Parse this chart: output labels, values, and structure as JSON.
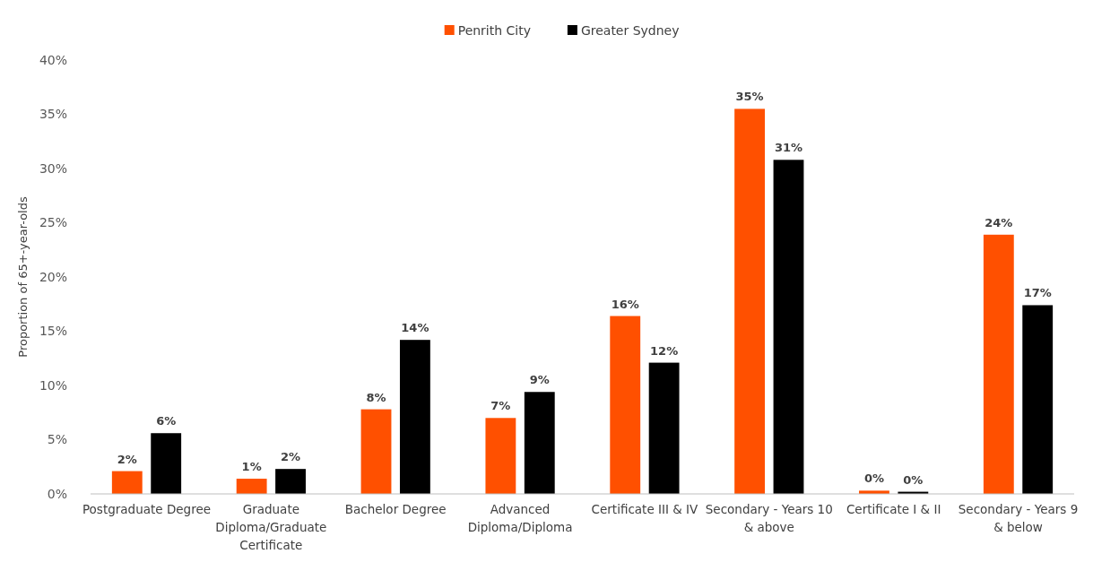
{
  "chart_data": {
    "type": "bar",
    "ylabel": "Proportion of 65+-year-olds",
    "categories": [
      "Postgraduate Degree",
      "Graduate Diploma/Graduate Certificate",
      "Bachelor Degree",
      "Advanced Diploma/Diploma",
      "Certificate III & IV",
      "Secondary - Years 10 & above",
      "Certificate I & II",
      "Secondary - Years 9 & below"
    ],
    "series": [
      {
        "name": "Penrith City",
        "color": "#ff5000",
        "values": [
          2.1,
          1.4,
          7.8,
          7.0,
          16.4,
          35.5,
          0.3,
          23.9
        ],
        "value_labels": [
          "2%",
          "1%",
          "8%",
          "7%",
          "16%",
          "35%",
          "0%",
          "24%"
        ]
      },
      {
        "name": "Greater Sydney",
        "color": "#000000",
        "values": [
          5.6,
          2.3,
          14.2,
          9.4,
          12.1,
          30.8,
          0.2,
          17.4
        ],
        "value_labels": [
          "6%",
          "2%",
          "14%",
          "9%",
          "12%",
          "31%",
          "0%",
          "17%"
        ]
      }
    ],
    "ylim": [
      0,
      40
    ],
    "yticks": [
      {
        "value": 0,
        "label": "0%"
      },
      {
        "value": 5,
        "label": "5%"
      },
      {
        "value": 10,
        "label": "10%"
      },
      {
        "value": 15,
        "label": "15%"
      },
      {
        "value": 20,
        "label": "20%"
      },
      {
        "value": 25,
        "label": "25%"
      },
      {
        "value": 30,
        "label": "30%"
      },
      {
        "value": 35,
        "label": "35%"
      },
      {
        "value": 40,
        "label": "40%"
      }
    ],
    "legend": "top"
  }
}
